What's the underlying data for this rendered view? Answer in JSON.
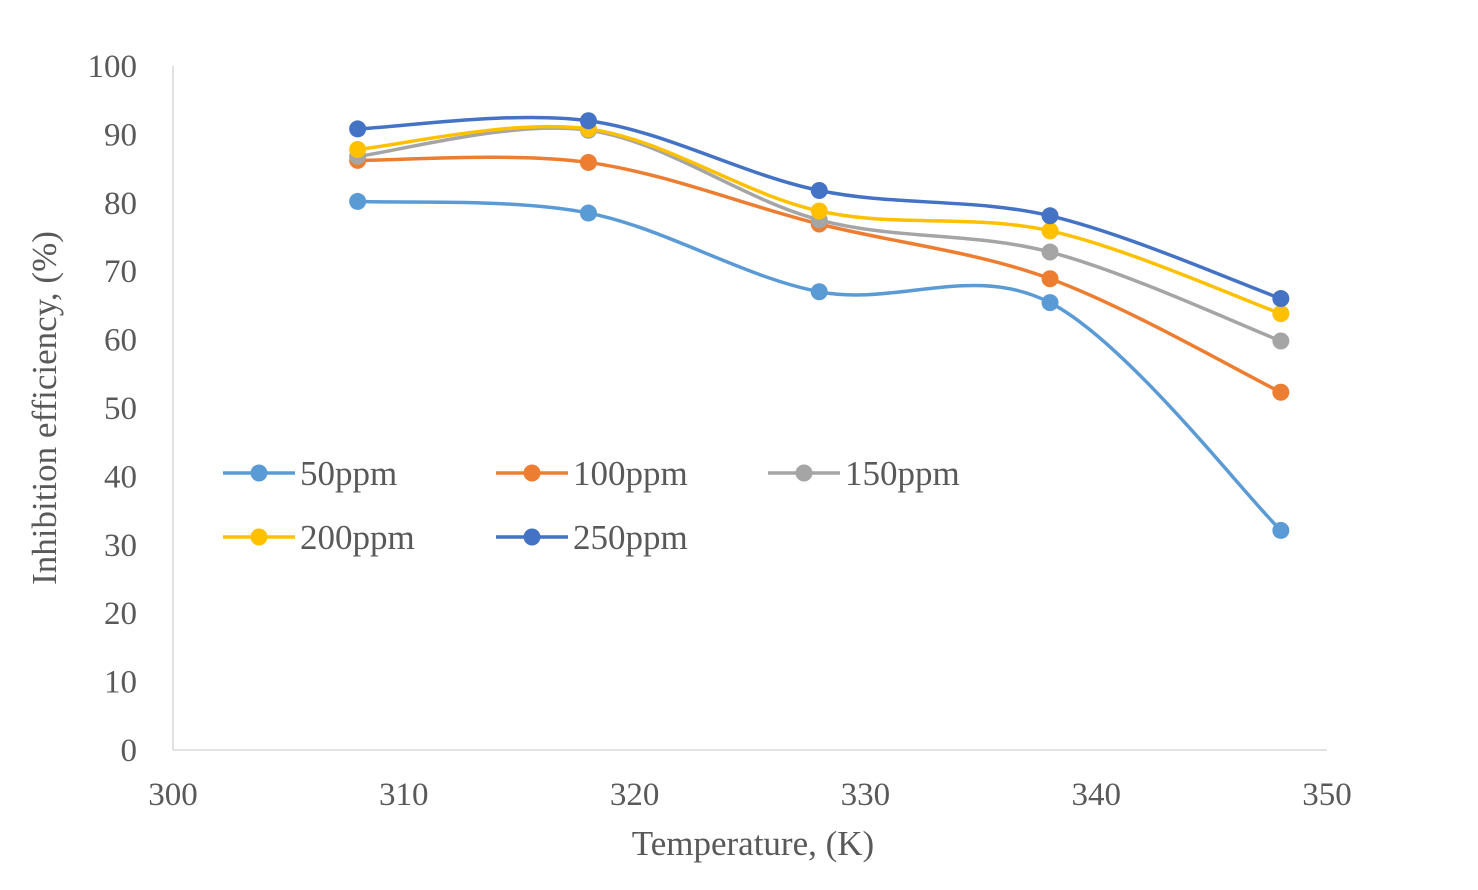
{
  "chart_data": {
    "type": "line",
    "xlabel": "Temperature, (K)",
    "ylabel": "Inhibition efficiency, (%)",
    "xlim": [
      300,
      350
    ],
    "ylim": [
      0,
      100
    ],
    "x_ticks": [
      "300",
      "310",
      "320",
      "330",
      "340",
      "350"
    ],
    "y_ticks": [
      "0",
      "10",
      "20",
      "30",
      "40",
      "50",
      "60",
      "70",
      "80",
      "90",
      "100"
    ],
    "grid": false,
    "smoothed": true,
    "legend_position": "inside-center-left",
    "x": [
      308,
      318,
      328,
      338,
      348
    ],
    "series": [
      {
        "name": "50ppm",
        "color": "#5B9BD5",
        "values": [
          80.2,
          78.5,
          67.0,
          65.4,
          32.1
        ]
      },
      {
        "name": "100ppm",
        "color": "#ED7D31",
        "values": [
          86.2,
          85.9,
          76.9,
          68.9,
          52.3
        ]
      },
      {
        "name": "150ppm",
        "color": "#A5A5A5",
        "values": [
          86.8,
          90.6,
          77.5,
          72.8,
          59.8
        ]
      },
      {
        "name": "200ppm",
        "color": "#FFC000",
        "values": [
          87.8,
          90.8,
          78.8,
          75.9,
          63.8
        ]
      },
      {
        "name": "250ppm",
        "color": "#4472C4",
        "values": [
          90.8,
          92.0,
          81.8,
          78.1,
          66.0
        ]
      }
    ]
  }
}
